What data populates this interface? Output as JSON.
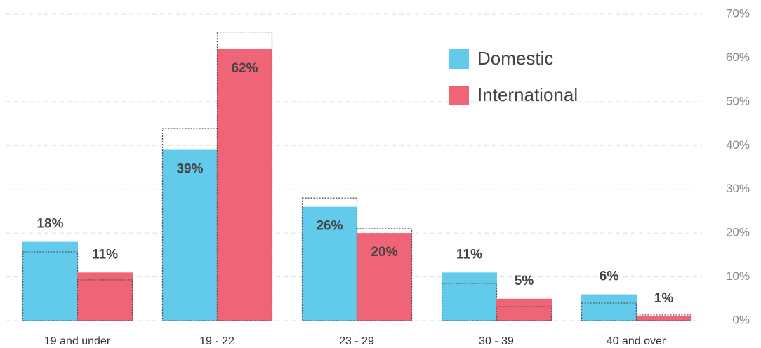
{
  "chart_data": {
    "type": "bar",
    "categories": [
      "19 and under",
      "19 - 22",
      "23 - 29",
      "30 - 39",
      "40 and over"
    ],
    "series": [
      {
        "name": "Domestic",
        "color": "#62cbec",
        "values": [
          18,
          39,
          26,
          11,
          6
        ],
        "value_labels": [
          "18%",
          "39%",
          "26%",
          "11%",
          "6%"
        ],
        "outline": [
          15.7,
          43.9,
          28,
          8.5,
          4
        ]
      },
      {
        "name": "International",
        "color": "#ef6477",
        "values": [
          11,
          62,
          20,
          5,
          1
        ],
        "value_labels": [
          "11%",
          "62%",
          "20%",
          "5%",
          "1%"
        ],
        "outline": [
          9.3,
          65.9,
          21,
          3.2,
          1.3
        ]
      }
    ],
    "ylim": [
      0,
      70
    ],
    "yticks": [
      {
        "value": 0,
        "label": "0%"
      },
      {
        "value": 10,
        "label": "10%"
      },
      {
        "value": 20,
        "label": "20%"
      },
      {
        "value": 30,
        "label": "30%"
      },
      {
        "value": 40,
        "label": "40%"
      },
      {
        "value": 50,
        "label": "50%"
      },
      {
        "value": 60,
        "label": "60%"
      },
      {
        "value": 70,
        "label": "70%"
      }
    ],
    "grid": true,
    "legend": "top-right"
  }
}
